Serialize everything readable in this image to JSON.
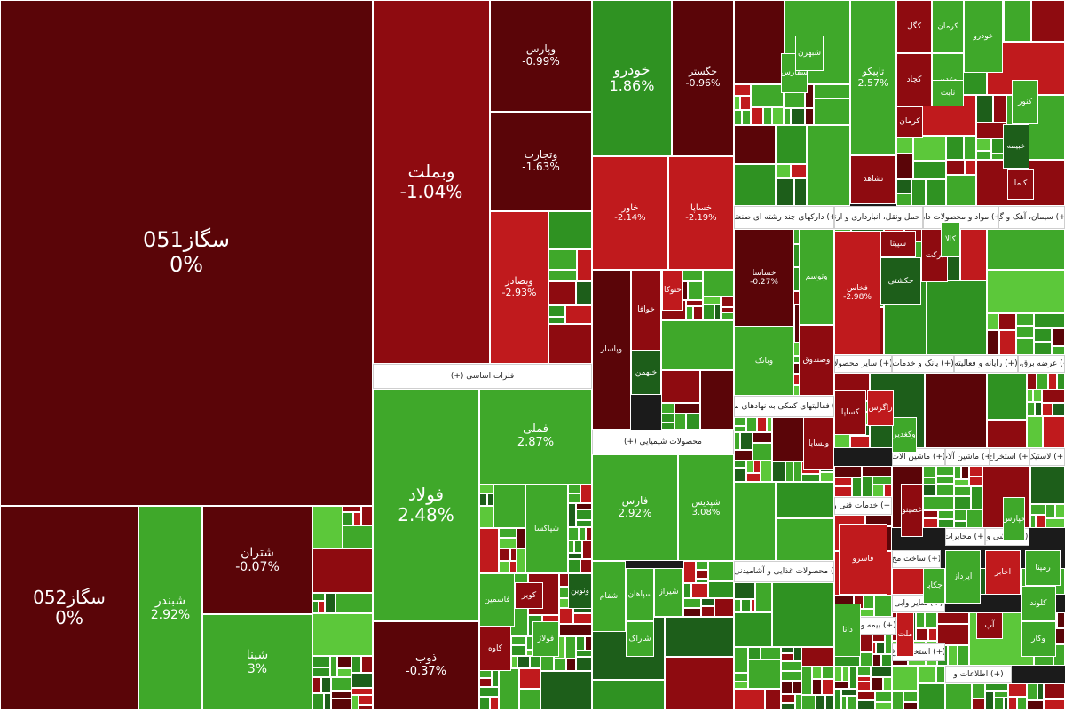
{
  "colors": {
    "deep_red": "#5a0508",
    "dark_red": "#8e0b10",
    "red": "#c01a1d",
    "light_green": "#3fa82a",
    "green": "#2f9222",
    "dark_green": "#1d5e1a",
    "lime": "#5cc83a"
  },
  "sectors": [
    {
      "label": "فلزات اساسی (+)"
    },
    {
      "label": "محصولات شیمیایی (+)"
    },
    {
      "label": "(+) دارکهای چند رشته ای صنعتی"
    },
    {
      "label": "(+) حمل ونقل، انبارداری و ارتباط"
    },
    {
      "label": "(+) مواد و محصولات دارو"
    },
    {
      "label": "(+) سیمان، آهک و گچ"
    },
    {
      "label": "(+) فعالیتهای کمکی به نهادهای مالی"
    },
    {
      "label": "(+) محصولات غذایی و آشامیدنی به"
    },
    {
      "label": "(+) سایر محصولا"
    },
    {
      "label": "(+) یانک و خدمات"
    },
    {
      "label": "(+) رایانه و فعالیته"
    },
    {
      "label": "(+) عرضه برق، گا"
    },
    {
      "label": "(+) ماشین آلات"
    },
    {
      "label": "(+) ماشین آلات"
    },
    {
      "label": "(+) استخراج"
    },
    {
      "label": "(+) لاستیک"
    },
    {
      "label": "(+) خدمات فنی و"
    },
    {
      "label": "(+) محابرات"
    },
    {
      "label": "(+) کاشی و"
    },
    {
      "label": "(+) ساخت مح"
    },
    {
      "label": "(+) سایر وابی"
    },
    {
      "label": "(+) بیمه و صندوق"
    },
    {
      "label": "(+) استخراج ذغ"
    },
    {
      "label": "(+) اطلاعات و"
    }
  ],
  "tiles": [
    {
      "symbol": "سگاز051",
      "change": "0%"
    },
    {
      "symbol": "سگاز052",
      "change": "0%"
    },
    {
      "symbol": "شبندر",
      "change": "2.92%"
    },
    {
      "symbol": "شتران",
      "change": "-0.07%"
    },
    {
      "symbol": "شپنا",
      "change": "3%"
    },
    {
      "symbol": "وبملت",
      "change": "-1.04%"
    },
    {
      "symbol": "وپارس",
      "change": "-0.99%"
    },
    {
      "symbol": "وتجارت",
      "change": "-1.63%"
    },
    {
      "symbol": "وبصادر",
      "change": "-2.93%"
    },
    {
      "symbol": "فولاد",
      "change": "2.48%"
    },
    {
      "symbol": "فملی",
      "change": "2.87%"
    },
    {
      "symbol": "ذوب",
      "change": "-0.37%"
    },
    {
      "symbol": "خودرو",
      "change": "1.86%"
    },
    {
      "symbol": "خگستر",
      "change": "-0.96%"
    },
    {
      "symbol": "خاور",
      "change": "-2.14%"
    },
    {
      "symbol": "خساپا",
      "change": "-2.19%"
    },
    {
      "symbol": "فارس",
      "change": "2.92%"
    },
    {
      "symbol": "شپدیس",
      "change": "3.08%"
    },
    {
      "symbol": "تاپیکو",
      "change": "2.57%"
    },
    {
      "symbol": "فخاس",
      "change": "-2.98%"
    },
    {
      "symbol": "خساسا",
      "change": "-0.27%"
    },
    {
      "symbol": "حکشتی",
      "change": ""
    },
    {
      "symbol": "وتوسم",
      "change": ""
    },
    {
      "symbol": "کگل",
      "change": ""
    },
    {
      "symbol": "کرمان",
      "change": ""
    },
    {
      "symbol": "کچاد",
      "change": ""
    },
    {
      "symbol": "وغدیر",
      "change": ""
    },
    {
      "symbol": "تشاهد",
      "change": ""
    },
    {
      "symbol": "برکت",
      "change": ""
    },
    {
      "symbol": "خودرو",
      "change": ""
    },
    {
      "symbol": "خبهمن",
      "change": ""
    },
    {
      "symbol": "وپاسار",
      "change": ""
    },
    {
      "symbol": "خوافا",
      "change": ""
    },
    {
      "symbol": "وبانک",
      "change": ""
    },
    {
      "symbol": "وصندوق",
      "change": ""
    },
    {
      "symbol": "سپاهان",
      "change": ""
    },
    {
      "symbol": "شیراز",
      "change": ""
    },
    {
      "symbol": "شفام",
      "change": ""
    },
    {
      "symbol": "شاراک",
      "change": ""
    },
    {
      "symbol": "فاسمین",
      "change": ""
    },
    {
      "symbol": "کاوه",
      "change": ""
    },
    {
      "symbol": "فولاژ",
      "change": ""
    },
    {
      "symbol": "کویر",
      "change": ""
    },
    {
      "symbol": "ونوین",
      "change": ""
    },
    {
      "symbol": "کساپا",
      "change": ""
    },
    {
      "symbol": "اخابر",
      "change": ""
    },
    {
      "symbol": "کلوند",
      "change": ""
    },
    {
      "symbol": "وکغدیر",
      "change": ""
    },
    {
      "symbol": "فاسرو",
      "change": ""
    },
    {
      "symbol": "سپیتا",
      "change": ""
    },
    {
      "symbol": "ثابت",
      "change": ""
    },
    {
      "symbol": "خبیمه",
      "change": ""
    },
    {
      "symbol": "کرمان",
      "change": ""
    },
    {
      "symbol": "کاما",
      "change": ""
    },
    {
      "symbol": "اپرداز",
      "change": ""
    },
    {
      "symbol": "ولساپا",
      "change": ""
    },
    {
      "symbol": "شپاکسا",
      "change": ""
    },
    {
      "symbol": "سفارس",
      "change": ""
    },
    {
      "symbol": "غصینو",
      "change": ""
    },
    {
      "symbol": "دانا",
      "change": ""
    },
    {
      "symbol": "ملت",
      "change": ""
    },
    {
      "symbol": "کنور",
      "change": ""
    },
    {
      "symbol": "زاگرس",
      "change": ""
    },
    {
      "symbol": "حتوکا",
      "change": ""
    },
    {
      "symbol": "شبهرن",
      "change": ""
    },
    {
      "symbol": "چکاپا",
      "change": ""
    },
    {
      "symbol": "خپارس",
      "change": ""
    },
    {
      "symbol": "رمپنا",
      "change": ""
    },
    {
      "symbol": "کالا",
      "change": ""
    },
    {
      "symbol": "آپ",
      "change": ""
    },
    {
      "symbol": "وکار",
      "change": ""
    }
  ]
}
